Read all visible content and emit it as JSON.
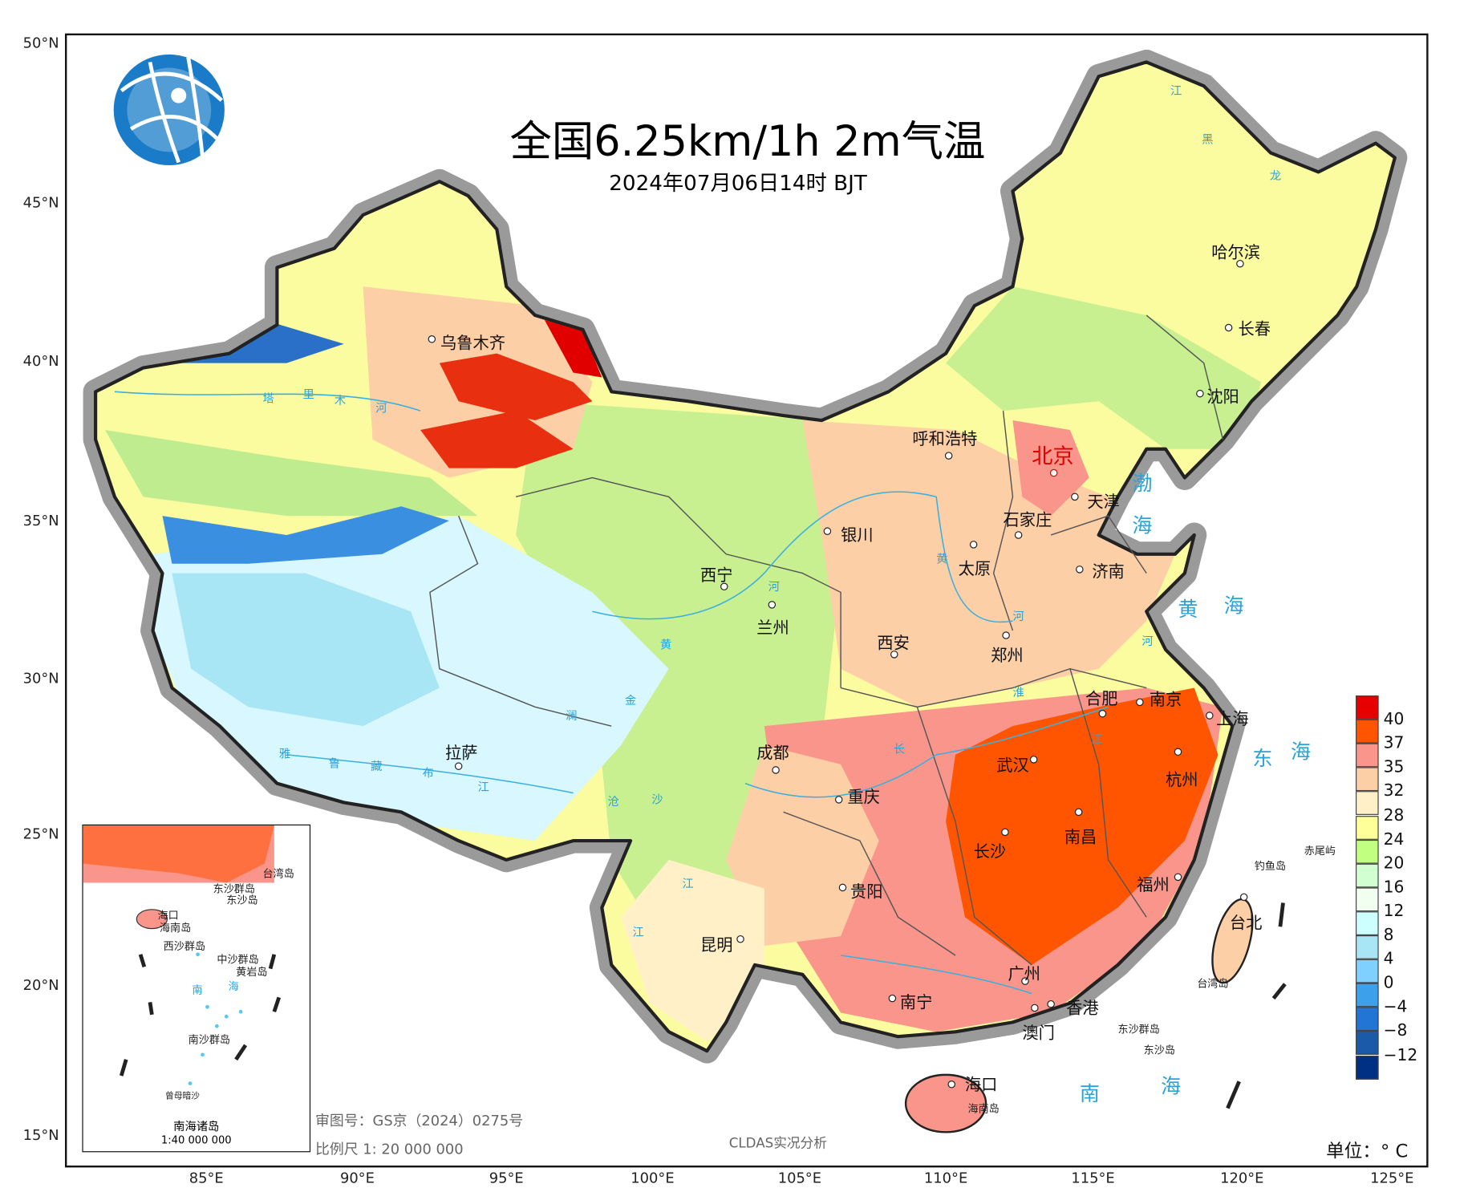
{
  "title": "全国6.25km/1h 2m气温",
  "subtitle": "2024年07月06日14时 BJT",
  "lat_labels": [
    "50°N",
    "45°N",
    "40°N",
    "35°N",
    "30°N",
    "25°N",
    "20°N",
    "15°N"
  ],
  "lon_labels": [
    "85°E",
    "90°E",
    "95°E",
    "100°E",
    "105°E",
    "110°E",
    "115°E",
    "120°E",
    "125°E"
  ],
  "cities": [
    "乌鲁木齐",
    "呼和浩特",
    "北京",
    "天津",
    "石家庄",
    "银川",
    "太原",
    "济南",
    "西宁",
    "兰州",
    "西安",
    "郑州",
    "哈尔滨",
    "长春",
    "沈阳",
    "合肥",
    "南京",
    "上海",
    "武汉",
    "杭州",
    "拉萨",
    "成都",
    "重庆",
    "南昌",
    "长沙",
    "福州",
    "贵阳",
    "台北",
    "昆明",
    "广州",
    "南宁",
    "香港",
    "澳门",
    "海口"
  ],
  "capital_color": "#e00000",
  "seas": [
    "渤",
    "海",
    "黄",
    "海",
    "东",
    "海",
    "南",
    "海"
  ],
  "small_labels": [
    "海南岛",
    "钓鱼岛",
    "赤尾屿",
    "台湾岛",
    "东沙群岛",
    "东沙岛"
  ],
  "rivers": [
    "塔",
    "里",
    "木",
    "河",
    "黄",
    "河",
    "黄",
    "河",
    "河",
    "长",
    "江",
    "澜",
    "金",
    "沧",
    "沙",
    "江",
    "雅",
    "鲁",
    "藏",
    "布",
    "江",
    "淮",
    "江",
    "江",
    "黑",
    "龙",
    "江"
  ],
  "legend": {
    "unit_label": "单位：° C",
    "labels": [
      "40",
      "37",
      "35",
      "32",
      "28",
      "24",
      "20",
      "16",
      "12",
      "8",
      "4",
      "0",
      "−4",
      "−8",
      "−12"
    ],
    "colors": [
      "#e60000",
      "#ff5500",
      "#f9958a",
      "#fdcfa6",
      "#fff0c8",
      "#ffff99",
      "#c0ff80",
      "#d2ffd2",
      "#f0fff0",
      "#ceffff",
      "#a8e6f5",
      "#80d0ff",
      "#3ca0ea",
      "#2275d5",
      "#1a5aa8",
      "#003083"
    ]
  },
  "inset": {
    "title": "南海诸岛",
    "scale": "1:40 000 000",
    "labels": [
      "台湾岛",
      "东沙群岛",
      "东沙岛",
      "海口",
      "海南岛",
      "西沙群岛",
      "中沙群岛",
      "黄岩岛",
      "南",
      "海",
      "南沙群岛",
      "曾母暗沙"
    ]
  },
  "footer": {
    "approval": "审图号：GS京（2024）0275号",
    "scale": "比例尺 1: 20 000 000",
    "source": "CLDAS实况分析"
  }
}
